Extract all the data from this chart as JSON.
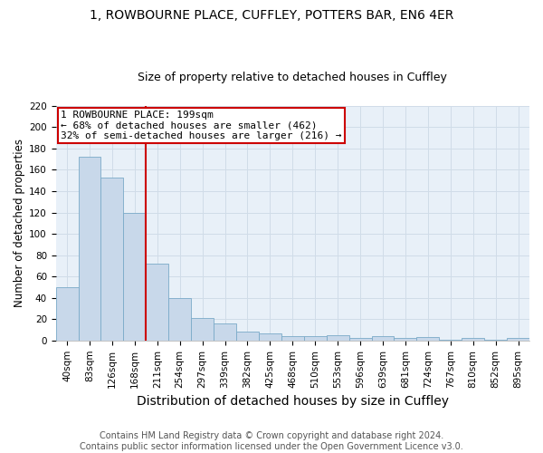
{
  "title1": "1, ROWBOURNE PLACE, CUFFLEY, POTTERS BAR, EN6 4ER",
  "title2": "Size of property relative to detached houses in Cuffley",
  "xlabel": "Distribution of detached houses by size in Cuffley",
  "ylabel": "Number of detached properties",
  "footnote": "Contains HM Land Registry data © Crown copyright and database right 2024.\nContains public sector information licensed under the Open Government Licence v3.0.",
  "bin_labels": [
    "40sqm",
    "83sqm",
    "126sqm",
    "168sqm",
    "211sqm",
    "254sqm",
    "297sqm",
    "339sqm",
    "382sqm",
    "425sqm",
    "468sqm",
    "510sqm",
    "553sqm",
    "596sqm",
    "639sqm",
    "681sqm",
    "724sqm",
    "767sqm",
    "810sqm",
    "852sqm",
    "895sqm"
  ],
  "bar_values": [
    50,
    172,
    153,
    120,
    72,
    40,
    21,
    16,
    8,
    7,
    4,
    4,
    5,
    2,
    4,
    2,
    3,
    1,
    2,
    1,
    2
  ],
  "bar_color": "#c8d8ea",
  "bar_edge_color": "#7aaac8",
  "property_line_bin_index": 4,
  "property_line_color": "#cc0000",
  "annotation_text": "1 ROWBOURNE PLACE: 199sqm\n← 68% of detached houses are smaller (462)\n32% of semi-detached houses are larger (216) →",
  "annotation_box_color": "#cc0000",
  "annotation_text_color": "#000000",
  "ylim": [
    0,
    220
  ],
  "yticks": [
    0,
    20,
    40,
    60,
    80,
    100,
    120,
    140,
    160,
    180,
    200,
    220
  ],
  "grid_color": "#d0dce8",
  "background_color": "#e8f0f8",
  "title1_fontsize": 10,
  "title2_fontsize": 9,
  "xlabel_fontsize": 10,
  "ylabel_fontsize": 8.5,
  "tick_fontsize": 7.5,
  "footnote_fontsize": 7,
  "annotation_fontsize": 8
}
